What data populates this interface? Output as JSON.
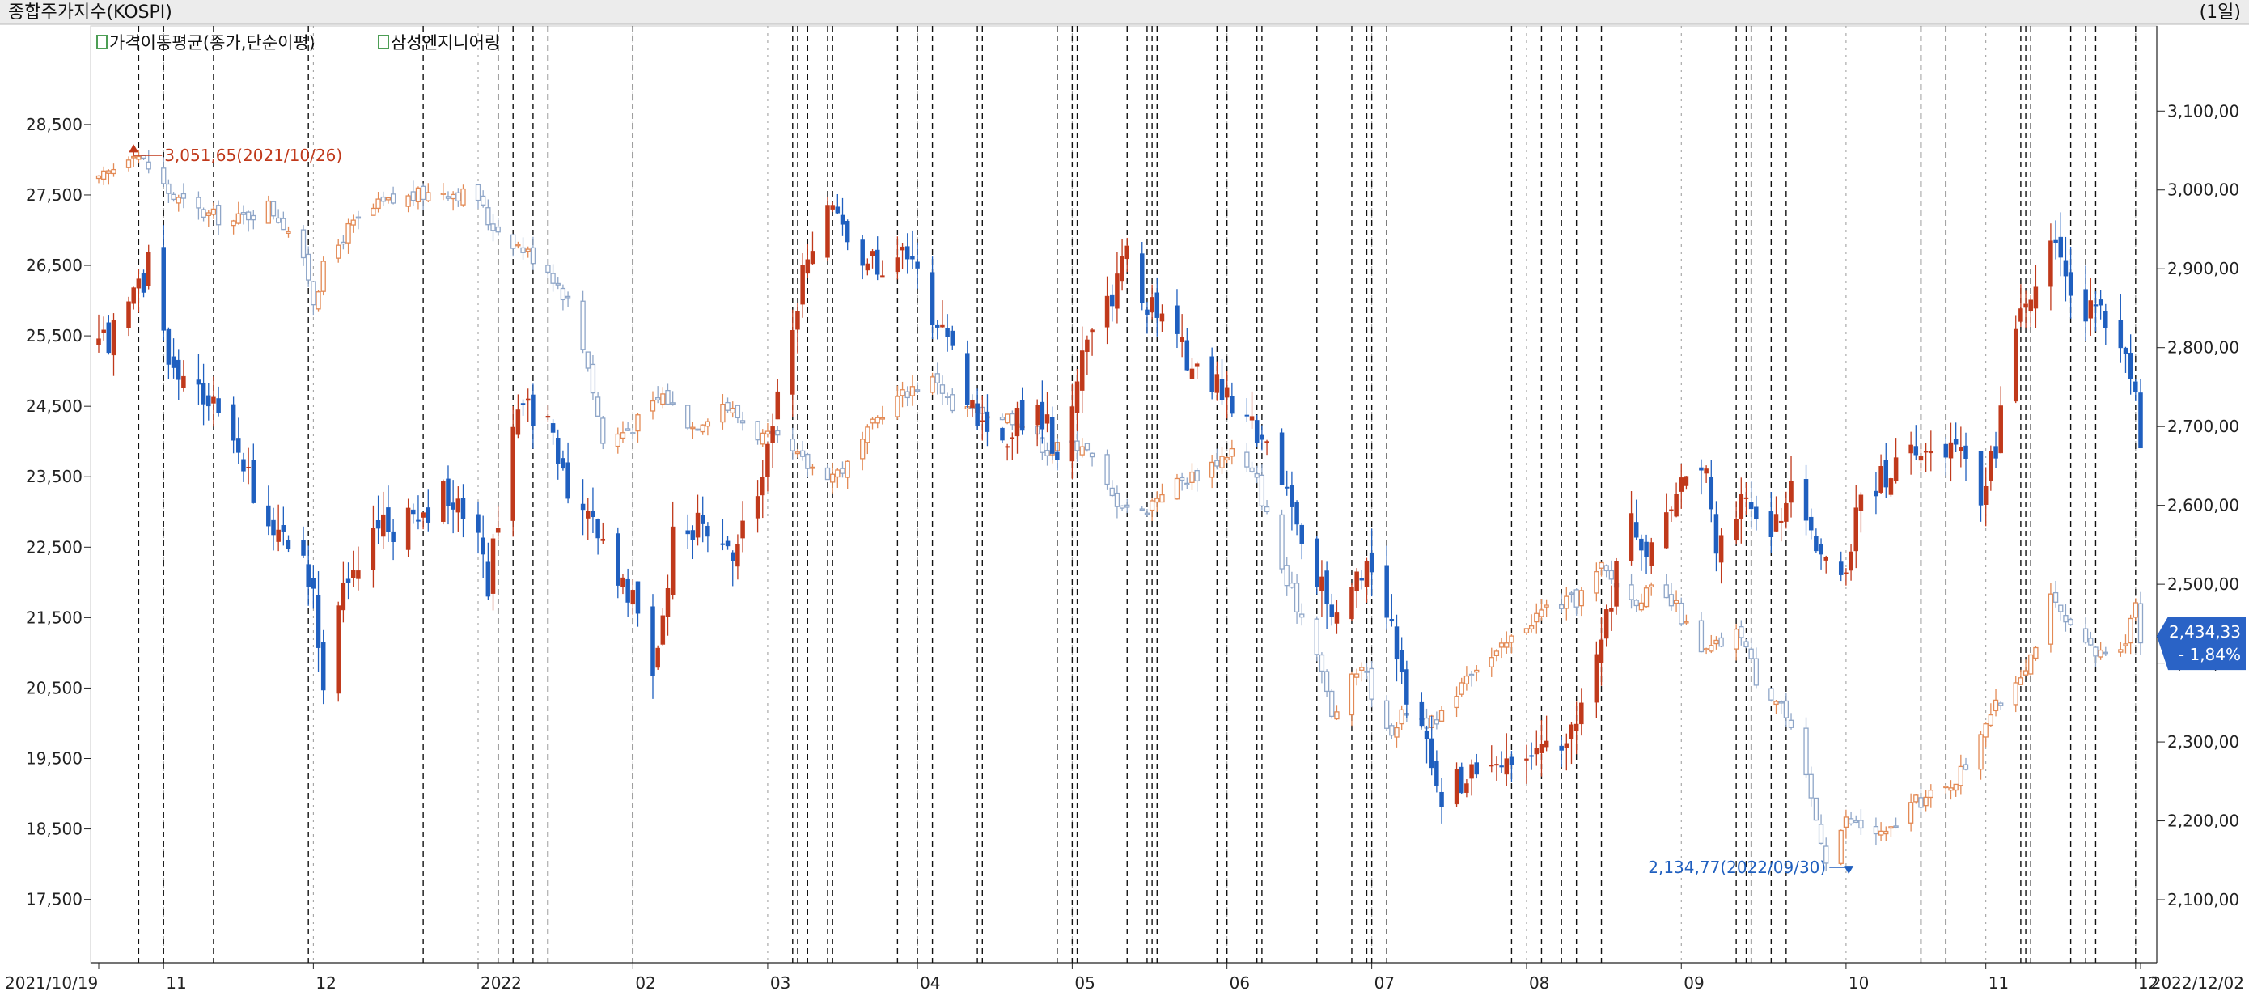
{
  "header": {
    "title": "종합주가지수(KOSPI)",
    "period": "(1일)",
    "legend_ma": "가격이동평균(종가,단순이평)",
    "legend_stock": "삼성엔지니어링"
  },
  "colors": {
    "up": "#c0391b",
    "down": "#1f5fbf",
    "kospi_up": "#e38a55",
    "kospi_down": "#8fa6c8",
    "grid": "#999999",
    "annotation_high": "#c0391b",
    "annotation_low": "#1f5fbf",
    "badge_bg": "#2a63c6"
  },
  "chart_data": {
    "type": "candlestick",
    "left_axis": {
      "ticks": [
        28500,
        27500,
        26500,
        25500,
        24500,
        23500,
        22500,
        21500,
        20500,
        19500,
        18500,
        17500
      ],
      "labels": [
        "28,500",
        "27,500",
        "26,500",
        "25,500",
        "24,500",
        "23,500",
        "22,500",
        "21,500",
        "20,500",
        "19,500",
        "18,500",
        "17,500"
      ],
      "ylim": [
        16600,
        29900
      ]
    },
    "right_axis": {
      "ticks": [
        3100,
        3000,
        2900,
        2800,
        2700,
        2600,
        2500,
        2400,
        2300,
        2200,
        2100
      ],
      "labels": [
        "3,100,00",
        "3,000,00",
        "2,900,00",
        "2,800,00",
        "2,700,00",
        "2,600,00",
        "2,500,00",
        "2,400,00",
        "2,300,00",
        "2,200,00",
        "2,100,00"
      ],
      "ylim": [
        2020,
        3208
      ]
    },
    "x_axis": {
      "start": "2021-10-19",
      "end": "2022-12-02",
      "ticks": [
        {
          "date": "2021-10-19",
          "label": "2021/10/19"
        },
        {
          "date": "2021-11-01",
          "label": "11"
        },
        {
          "date": "2021-12-01",
          "label": "12"
        },
        {
          "date": "2022-01-03",
          "label": "2022"
        },
        {
          "date": "2022-02-03",
          "label": "02"
        },
        {
          "date": "2022-03-02",
          "label": "03"
        },
        {
          "date": "2022-04-01",
          "label": "04"
        },
        {
          "date": "2022-05-02",
          "label": "05"
        },
        {
          "date": "2022-06-02",
          "label": "06"
        },
        {
          "date": "2022-07-01",
          "label": "07"
        },
        {
          "date": "2022-08-01",
          "label": "08"
        },
        {
          "date": "2022-09-01",
          "label": "09"
        },
        {
          "date": "2022-10-04",
          "label": "10"
        },
        {
          "date": "2022-11-01",
          "label": "11"
        },
        {
          "date": "2022-12-01",
          "label": "12"
        },
        {
          "date": "2022-12-02",
          "label": "2022/12/02"
        }
      ]
    },
    "series": [
      {
        "name": "삼성엔지니어링",
        "axis": "left",
        "close_path": [
          [
            "2021-10-19",
            25300
          ],
          [
            "2021-10-25",
            25800
          ],
          [
            "2021-10-29",
            26500
          ],
          [
            "2021-11-03",
            25000
          ],
          [
            "2021-11-10",
            24600
          ],
          [
            "2021-11-16",
            23700
          ],
          [
            "2021-11-22",
            22900
          ],
          [
            "2021-11-29",
            22300
          ],
          [
            "2021-12-01",
            21700
          ],
          [
            "2021-12-03",
            20700
          ],
          [
            "2021-12-08",
            22100
          ],
          [
            "2021-12-14",
            22700
          ],
          [
            "2021-12-20",
            22900
          ],
          [
            "2021-12-27",
            23200
          ],
          [
            "2022-01-03",
            22700
          ],
          [
            "2022-01-05",
            21900
          ],
          [
            "2022-01-07",
            23000
          ],
          [
            "2022-01-11",
            24600
          ],
          [
            "2022-01-17",
            24200
          ],
          [
            "2022-01-21",
            23300
          ],
          [
            "2022-01-26",
            22800
          ],
          [
            "2022-02-03",
            21800
          ],
          [
            "2022-02-07",
            20600
          ],
          [
            "2022-02-11",
            22600
          ],
          [
            "2022-02-17",
            22900
          ],
          [
            "2022-02-22",
            22300
          ],
          [
            "2022-02-28",
            23100
          ],
          [
            "2022-03-04",
            24600
          ],
          [
            "2022-03-10",
            26800
          ],
          [
            "2022-03-16",
            27300
          ],
          [
            "2022-03-21",
            26500
          ],
          [
            "2022-03-28",
            26600
          ],
          [
            "2022-04-01",
            26400
          ],
          [
            "2022-04-06",
            25500
          ],
          [
            "2022-04-12",
            24500
          ],
          [
            "2022-04-18",
            24000
          ],
          [
            "2022-04-25",
            24600
          ],
          [
            "2022-04-29",
            23800
          ],
          [
            "2022-05-04",
            25200
          ],
          [
            "2022-05-09",
            26000
          ],
          [
            "2022-05-13",
            26600
          ],
          [
            "2022-05-19",
            25700
          ],
          [
            "2022-05-24",
            25300
          ],
          [
            "2022-05-31",
            24800
          ],
          [
            "2022-06-03",
            24500
          ],
          [
            "2022-06-08",
            24100
          ],
          [
            "2022-06-14",
            23300
          ],
          [
            "2022-06-20",
            22000
          ],
          [
            "2022-06-24",
            21500
          ],
          [
            "2022-06-30",
            22300
          ],
          [
            "2022-07-04",
            21600
          ],
          [
            "2022-07-08",
            20400
          ],
          [
            "2022-07-12",
            19700
          ],
          [
            "2022-07-15",
            18900
          ],
          [
            "2022-07-21",
            19400
          ],
          [
            "2022-07-27",
            19200
          ],
          [
            "2022-08-02",
            19600
          ],
          [
            "2022-08-08",
            19800
          ],
          [
            "2022-08-12",
            20300
          ],
          [
            "2022-08-17",
            21600
          ],
          [
            "2022-08-22",
            22800
          ],
          [
            "2022-08-26",
            22400
          ],
          [
            "2022-08-31",
            23400
          ],
          [
            "2022-09-05",
            23800
          ],
          [
            "2022-09-08",
            22600
          ],
          [
            "2022-09-14",
            23100
          ],
          [
            "2022-09-19",
            22700
          ],
          [
            "2022-09-23",
            23500
          ],
          [
            "2022-09-28",
            22500
          ],
          [
            "2022-10-04",
            22100
          ],
          [
            "2022-10-07",
            23200
          ],
          [
            "2022-10-13",
            23600
          ],
          [
            "2022-10-19",
            23900
          ],
          [
            "2022-10-25",
            24000
          ],
          [
            "2022-10-31",
            23300
          ],
          [
            "2022-11-03",
            23900
          ],
          [
            "2022-11-07",
            25600
          ],
          [
            "2022-11-10",
            26100
          ],
          [
            "2022-11-14",
            26700
          ],
          [
            "2022-11-17",
            26400
          ],
          [
            "2022-11-21",
            25700
          ],
          [
            "2022-11-24",
            26000
          ],
          [
            "2022-11-28",
            25200
          ],
          [
            "2022-12-01",
            24700
          ],
          [
            "2022-12-02",
            23700
          ]
        ]
      },
      {
        "name": "종합주가지수(KOSPI)",
        "axis": "right",
        "close_path": [
          [
            "2021-10-19",
            3010
          ],
          [
            "2021-10-26",
            3051.65
          ],
          [
            "2021-11-03",
            2990
          ],
          [
            "2021-11-09",
            2970
          ],
          [
            "2021-11-15",
            2960
          ],
          [
            "2021-11-22",
            2980
          ],
          [
            "2021-11-26",
            2950
          ],
          [
            "2021-11-30",
            2890
          ],
          [
            "2021-12-01",
            2860
          ],
          [
            "2021-12-03",
            2900
          ],
          [
            "2021-12-08",
            2950
          ],
          [
            "2021-12-14",
            2980
          ],
          [
            "2021-12-20",
            2990
          ],
          [
            "2021-12-27",
            3000
          ],
          [
            "2022-01-03",
            2990
          ],
          [
            "2022-01-05",
            2960
          ],
          [
            "2022-01-11",
            2930
          ],
          [
            "2022-01-17",
            2900
          ],
          [
            "2022-01-21",
            2860
          ],
          [
            "2022-01-25",
            2780
          ],
          [
            "2022-01-28",
            2680
          ],
          [
            "2022-02-03",
            2700
          ],
          [
            "2022-02-09",
            2740
          ],
          [
            "2022-02-15",
            2700
          ],
          [
            "2022-02-21",
            2730
          ],
          [
            "2022-02-28",
            2690
          ],
          [
            "2022-03-04",
            2680
          ],
          [
            "2022-03-10",
            2650
          ],
          [
            "2022-03-15",
            2640
          ],
          [
            "2022-03-18",
            2650
          ],
          [
            "2022-03-25",
            2720
          ],
          [
            "2022-03-31",
            2750
          ],
          [
            "2022-04-05",
            2760
          ],
          [
            "2022-04-08",
            2720
          ],
          [
            "2022-04-14",
            2720
          ],
          [
            "2022-04-21",
            2710
          ],
          [
            "2022-04-27",
            2670
          ],
          [
            "2022-05-04",
            2680
          ],
          [
            "2022-05-10",
            2610
          ],
          [
            "2022-05-16",
            2590
          ],
          [
            "2022-05-20",
            2620
          ],
          [
            "2022-05-27",
            2640
          ],
          [
            "2022-06-03",
            2670
          ],
          [
            "2022-06-08",
            2630
          ],
          [
            "2022-06-14",
            2500
          ],
          [
            "2022-06-20",
            2420
          ],
          [
            "2022-06-23",
            2330
          ],
          [
            "2022-06-29",
            2400
          ],
          [
            "2022-07-04",
            2310
          ],
          [
            "2022-07-08",
            2340
          ],
          [
            "2022-07-14",
            2320
          ],
          [
            "2022-07-20",
            2390
          ],
          [
            "2022-07-26",
            2410
          ],
          [
            "2022-08-01",
            2450
          ],
          [
            "2022-08-05",
            2470
          ],
          [
            "2022-08-11",
            2480
          ],
          [
            "2022-08-16",
            2520
          ],
          [
            "2022-08-22",
            2480
          ],
          [
            "2022-08-26",
            2490
          ],
          [
            "2022-08-31",
            2470
          ],
          [
            "2022-09-05",
            2410
          ],
          [
            "2022-09-13",
            2440
          ],
          [
            "2022-09-16",
            2380
          ],
          [
            "2022-09-21",
            2350
          ],
          [
            "2022-09-26",
            2250
          ],
          [
            "2022-09-30",
            2155
          ],
          [
            "2022-10-04",
            2200
          ],
          [
            "2022-10-12",
            2180
          ],
          [
            "2022-10-17",
            2220
          ],
          [
            "2022-10-24",
            2240
          ],
          [
            "2022-10-28",
            2270
          ],
          [
            "2022-11-01",
            2330
          ],
          [
            "2022-11-04",
            2350
          ],
          [
            "2022-11-10",
            2410
          ],
          [
            "2022-11-14",
            2480
          ],
          [
            "2022-11-18",
            2440
          ],
          [
            "2022-11-23",
            2410
          ],
          [
            "2022-11-29",
            2430
          ],
          [
            "2022-12-01",
            2480
          ],
          [
            "2022-12-02",
            2434.33
          ]
        ]
      }
    ],
    "annotations": [
      {
        "label": "3,051,65(2021/10/26)",
        "date": "2021-10-26",
        "value": 3051.65,
        "axis": "right"
      },
      {
        "label": "2,134,77(2022/09/30)",
        "date": "2022-09-30",
        "value": 2134.77,
        "axis": "right"
      }
    ],
    "last_value": {
      "value": 2434.33,
      "label": "2,434,33",
      "change_label": "- 1,84%"
    },
    "vertical_markers": [
      "2021-10-27",
      "2021-11-01",
      "2021-11-11",
      "2021-11-30",
      "2021-12-23",
      "2022-01-07",
      "2022-01-10",
      "2022-01-14",
      "2022-01-17",
      "2022-02-03",
      "2022-03-07",
      "2022-03-08",
      "2022-03-10",
      "2022-03-14",
      "2022-03-15",
      "2022-03-28",
      "2022-04-01",
      "2022-04-04",
      "2022-04-13",
      "2022-04-14",
      "2022-04-29",
      "2022-05-02",
      "2022-05-03",
      "2022-05-13",
      "2022-05-17",
      "2022-05-18",
      "2022-05-19",
      "2022-05-31",
      "2022-06-02",
      "2022-06-08",
      "2022-06-09",
      "2022-06-20",
      "2022-06-27",
      "2022-06-30",
      "2022-07-01",
      "2022-07-04",
      "2022-07-29",
      "2022-08-04",
      "2022-08-08",
      "2022-08-11",
      "2022-08-16",
      "2022-09-12",
      "2022-09-14",
      "2022-09-15",
      "2022-09-19",
      "2022-09-22",
      "2022-10-19",
      "2022-10-24",
      "2022-11-08",
      "2022-11-09",
      "2022-11-10",
      "2022-11-18",
      "2022-11-21",
      "2022-11-23",
      "2022-12-01"
    ],
    "grid": true
  }
}
